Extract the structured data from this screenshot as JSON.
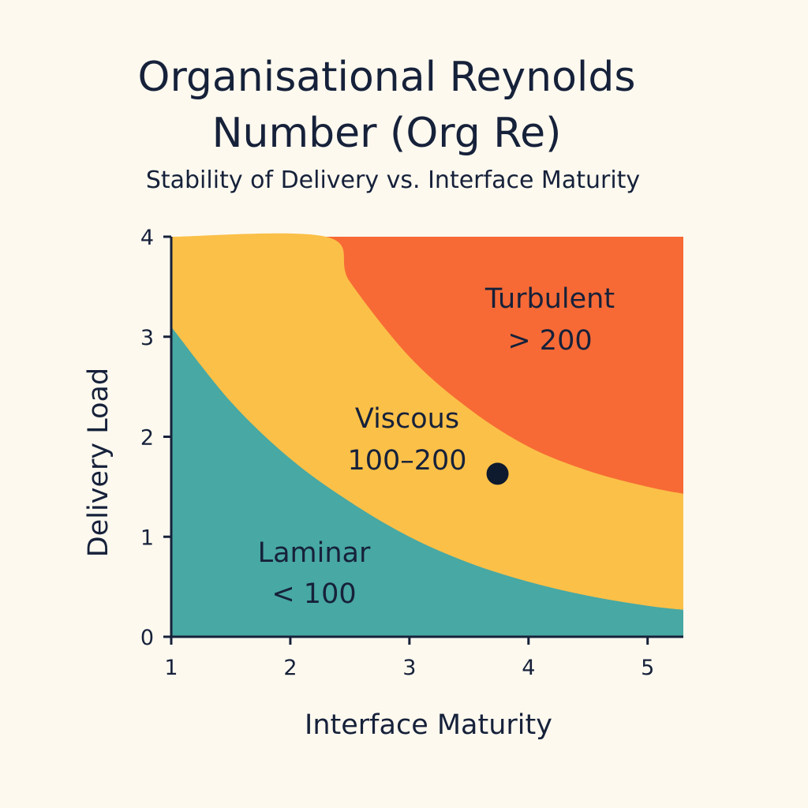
{
  "chart_data": {
    "type": "area",
    "title_line1": "Organisational Reynolds",
    "title_line2": "Number (Org Re)",
    "subtitle": "Stability of Delivery vs. Interface Maturity",
    "xlabel": "Interface Maturity",
    "ylabel": "Delivery Load",
    "xlim": [
      1,
      5.3
    ],
    "ylim": [
      0,
      4
    ],
    "x_ticks": [
      "1",
      "2",
      "3",
      "4",
      "5"
    ],
    "y_ticks": [
      "0",
      "1",
      "2",
      "3",
      "4"
    ],
    "grid": false,
    "regions": [
      {
        "name": "Laminar",
        "range": "< 100",
        "color": "#48a8a3",
        "upper_boundary": [
          [
            1,
            3.1
          ],
          [
            1.5,
            2.35
          ],
          [
            2,
            1.78
          ],
          [
            2.5,
            1.35
          ],
          [
            3,
            1.0
          ],
          [
            3.5,
            0.74
          ],
          [
            4,
            0.55
          ],
          [
            4.5,
            0.41
          ],
          [
            5,
            0.31
          ],
          [
            5.3,
            0.27
          ]
        ]
      },
      {
        "name": "Viscous",
        "range": "100–200",
        "color": "#fbc048",
        "upper_boundary": [
          [
            1,
            4.0
          ],
          [
            2.3,
            4.0
          ],
          [
            2.5,
            3.55
          ],
          [
            3,
            2.8
          ],
          [
            3.5,
            2.28
          ],
          [
            4,
            1.9
          ],
          [
            4.5,
            1.66
          ],
          [
            5,
            1.5
          ],
          [
            5.3,
            1.43
          ]
        ]
      },
      {
        "name": "Turbulent",
        "range": "> 200",
        "color": "#f76a35"
      }
    ],
    "points": [
      {
        "x": 3.74,
        "y": 1.63,
        "color": "#0e1a2e"
      }
    ]
  }
}
